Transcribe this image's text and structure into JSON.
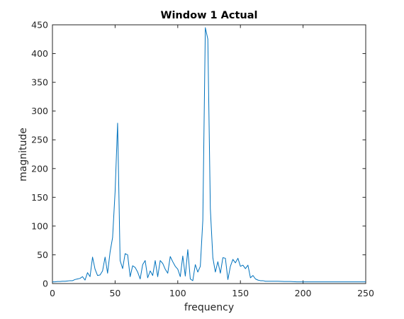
{
  "chart_data": {
    "type": "line",
    "title": "Window 1 Actual",
    "xlabel": "frequency",
    "ylabel": "magnitude",
    "xlim": [
      0,
      250
    ],
    "ylim": [
      0,
      450
    ],
    "xticks": [
      0,
      50,
      100,
      150,
      200,
      250
    ],
    "yticks": [
      0,
      50,
      100,
      150,
      200,
      250,
      300,
      350,
      400,
      450
    ],
    "grid": false,
    "line_color": "#0072BD",
    "series": [
      {
        "x": [
          0,
          2,
          4,
          6,
          8,
          10,
          12,
          14,
          16,
          18,
          20,
          22,
          24,
          26,
          28,
          30,
          32,
          34,
          36,
          38,
          40,
          42,
          44,
          46,
          48,
          50,
          52,
          54,
          56,
          58,
          60,
          62,
          64,
          66,
          68,
          70,
          72,
          74,
          76,
          78,
          80,
          82,
          84,
          86,
          88,
          90,
          92,
          94,
          96,
          98,
          100,
          102,
          104,
          106,
          108,
          110,
          112,
          114,
          116,
          118,
          120,
          122,
          124,
          126,
          128,
          130,
          132,
          134,
          136,
          138,
          140,
          142,
          144,
          146,
          148,
          150,
          152,
          154,
          156,
          158,
          160,
          162,
          164,
          166,
          168,
          170,
          175,
          180,
          185,
          190,
          195,
          200,
          210,
          220,
          230,
          240,
          250
        ],
        "y": [
          3,
          3,
          3.5,
          3.5,
          4,
          4,
          4.5,
          5,
          5,
          7,
          8,
          9,
          12,
          6,
          19,
          12,
          46,
          25,
          14,
          15,
          22,
          46,
          18,
          55,
          80,
          160,
          279,
          40,
          26,
          52,
          50,
          12,
          31,
          28,
          20,
          8,
          33,
          40,
          10,
          22,
          14,
          40,
          12,
          40,
          35,
          25,
          18,
          47,
          38,
          30,
          25,
          12,
          48,
          13,
          59,
          8,
          5,
          33,
          20,
          30,
          110,
          445,
          425,
          130,
          45,
          20,
          38,
          18,
          45,
          44,
          7,
          30,
          42,
          36,
          44,
          30,
          32,
          26,
          32,
          10,
          14,
          8,
          6,
          5,
          5,
          4,
          4,
          4,
          3.5,
          3.5,
          3,
          3,
          3,
          3,
          3,
          3,
          3
        ]
      }
    ]
  }
}
